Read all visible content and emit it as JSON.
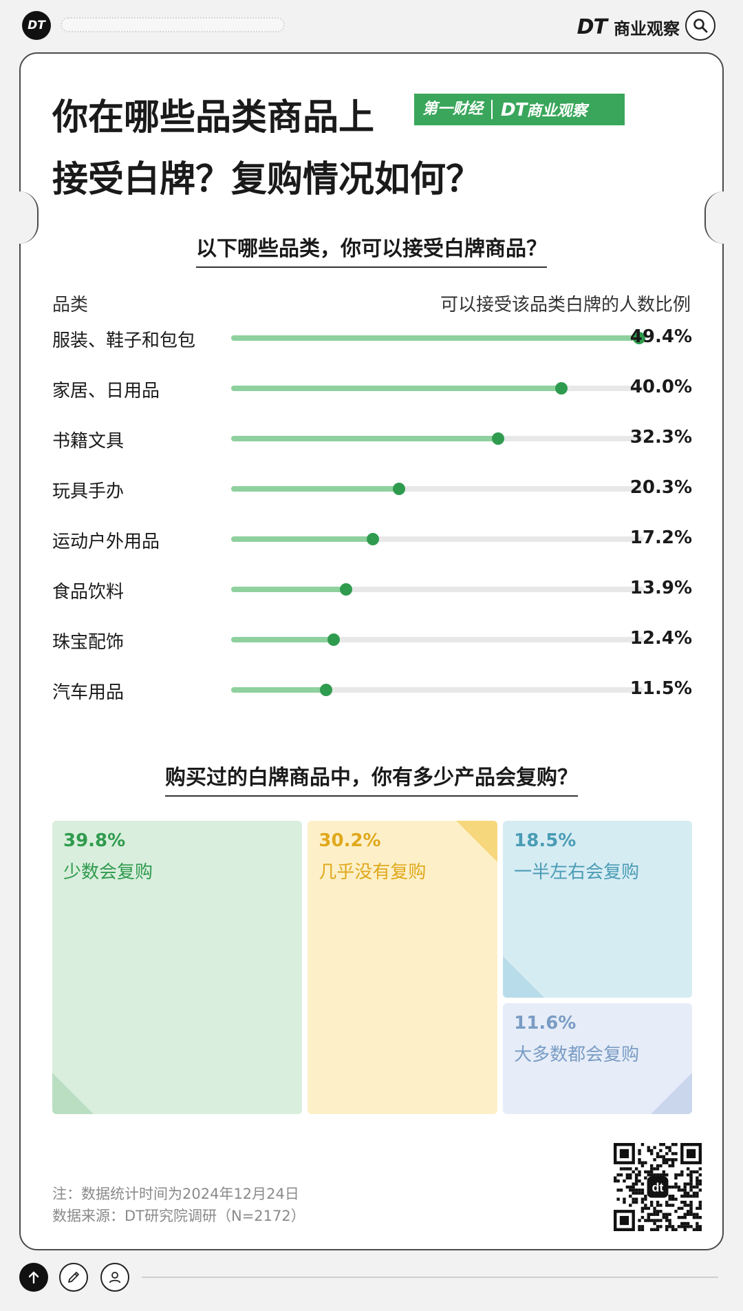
{
  "topbar": {
    "logo": "DT",
    "brand_dt": "DT",
    "brand_name": "商业观察"
  },
  "title": {
    "line1": "你在哪些品类商品上",
    "line2": "接受白牌？复购情况如何？"
  },
  "badge": {
    "left": "第一财经",
    "right_dt": "DT",
    "right_name": "商业观察"
  },
  "section1": {
    "title": "以下哪些品类，你可以接受白牌商品？",
    "col_left": "品类",
    "col_right": "可以接受该品类白牌的人数比例"
  },
  "section2": {
    "title": "购买过的白牌商品中，你有多少产品会复购？"
  },
  "chart_data": [
    {
      "type": "bar",
      "title": "以下哪些品类，你可以接受白牌商品？",
      "xlabel": "品类",
      "ylabel": "可以接受该品类白牌的人数比例",
      "categories": [
        "服装、鞋子和包包",
        "家居、日用品",
        "书籍文具",
        "玩具手办",
        "运动户外用品",
        "食品饮料",
        "珠宝配饰",
        "汽车用品"
      ],
      "values": [
        49.4,
        40.0,
        32.3,
        20.3,
        17.2,
        13.9,
        12.4,
        11.5
      ],
      "labels": [
        "49.4%",
        "40.0%",
        "32.3%",
        "20.3%",
        "17.2%",
        "13.9%",
        "12.4%",
        "11.5%"
      ],
      "ylim": [
        0,
        50
      ]
    },
    {
      "type": "treemap",
      "title": "购买过的白牌商品中，你有多少产品会复购？",
      "categories": [
        "少数会复购",
        "几乎没有复购",
        "一半左右会复购",
        "大多数都会复购"
      ],
      "values": [
        39.8,
        30.2,
        18.5,
        11.6
      ],
      "labels": [
        "39.8%",
        "30.2%",
        "18.5%",
        "11.6%"
      ],
      "colors": [
        "#2f9b4e",
        "#e0a81c",
        "#4a9cb5",
        "#7a9cc4"
      ]
    }
  ],
  "notes": {
    "line1": "注：数据统计时间为2024年12月24日",
    "line2": "数据来源：DT研究院调研（N=2172）"
  }
}
